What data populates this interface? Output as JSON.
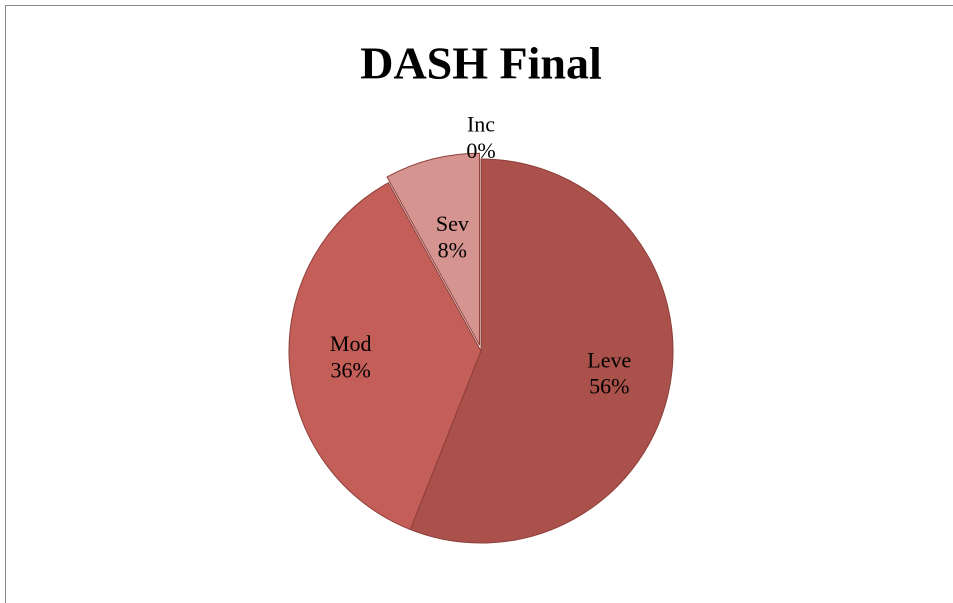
{
  "chart_data": {
    "type": "pie",
    "title": "DASH Final",
    "categories": [
      "Leve",
      "Mod",
      "Sev",
      "Inc"
    ],
    "values": [
      56,
      36,
      8,
      0
    ],
    "value_labels": [
      "56%",
      "36%",
      "8%",
      "0%"
    ],
    "colors": [
      "#a9514a",
      "#c45e58",
      "#d69490",
      "#e8c2bf"
    ]
  }
}
